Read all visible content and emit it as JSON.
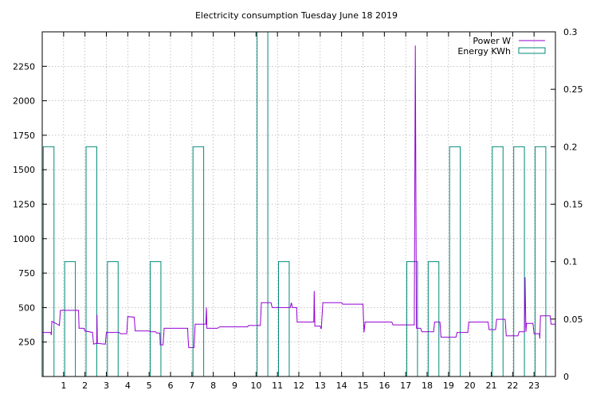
{
  "chart_data": {
    "type": "line",
    "title": "Electricity consumption Tuesday June 18 2019",
    "xlabel": "",
    "ylabel": "",
    "y2label": "",
    "xlim": [
      0,
      24
    ],
    "ylim": [
      0,
      2500
    ],
    "y2lim": [
      0,
      0.3
    ],
    "x_ticks": [
      1,
      2,
      3,
      4,
      5,
      6,
      7,
      8,
      9,
      10,
      11,
      12,
      13,
      14,
      15,
      16,
      17,
      18,
      19,
      20,
      21,
      22,
      23
    ],
    "y_ticks": [
      250,
      500,
      750,
      1000,
      1250,
      1500,
      1750,
      2000,
      2250
    ],
    "y2_ticks": [
      0,
      0.05,
      0.1,
      0.15,
      0.2,
      0.25,
      0.3
    ],
    "y2_tick_labels": [
      "0",
      "0.05",
      "0.1",
      "0.15",
      "0.2",
      "0.25",
      "0.3"
    ],
    "grid": true,
    "legend_position": "top-right",
    "series": [
      {
        "name": "Power W",
        "type": "line",
        "axis": "y",
        "color": "#9400d3",
        "points": [
          [
            0,
            320
          ],
          [
            0.4,
            320
          ],
          [
            0.42,
            300
          ],
          [
            0.45,
            400
          ],
          [
            0.7,
            380
          ],
          [
            0.8,
            370
          ],
          [
            0.85,
            480
          ],
          [
            1.7,
            480
          ],
          [
            1.72,
            350
          ],
          [
            1.95,
            350
          ],
          [
            2.0,
            330
          ],
          [
            2.35,
            320
          ],
          [
            2.4,
            235
          ],
          [
            2.55,
            240
          ],
          [
            2.56,
            450
          ],
          [
            2.58,
            240
          ],
          [
            2.95,
            235
          ],
          [
            3.0,
            320
          ],
          [
            3.6,
            320
          ],
          [
            3.65,
            310
          ],
          [
            3.95,
            310
          ],
          [
            4.0,
            435
          ],
          [
            4.3,
            430
          ],
          [
            4.35,
            330
          ],
          [
            5.0,
            330
          ],
          [
            5.05,
            325
          ],
          [
            5.3,
            325
          ],
          [
            5.35,
            315
          ],
          [
            5.5,
            315
          ],
          [
            5.52,
            230
          ],
          [
            5.65,
            230
          ],
          [
            5.7,
            350
          ],
          [
            6.8,
            350
          ],
          [
            6.82,
            280
          ],
          [
            6.85,
            210
          ],
          [
            7.1,
            210
          ],
          [
            7.15,
            380
          ],
          [
            7.65,
            380
          ],
          [
            7.68,
            500
          ],
          [
            7.7,
            350
          ],
          [
            8.2,
            350
          ],
          [
            8.3,
            360
          ],
          [
            9.6,
            360
          ],
          [
            9.65,
            370
          ],
          [
            10.2,
            370
          ],
          [
            10.25,
            535
          ],
          [
            10.7,
            535
          ],
          [
            10.75,
            500
          ],
          [
            11.6,
            500
          ],
          [
            11.65,
            535
          ],
          [
            11.7,
            500
          ],
          [
            11.9,
            500
          ],
          [
            11.92,
            395
          ],
          [
            12.7,
            395
          ],
          [
            12.72,
            620
          ],
          [
            12.75,
            365
          ],
          [
            13.0,
            365
          ],
          [
            13.05,
            345
          ],
          [
            13.12,
            535
          ],
          [
            14.0,
            535
          ],
          [
            14.05,
            525
          ],
          [
            15.0,
            525
          ],
          [
            15.05,
            320
          ],
          [
            15.1,
            395
          ],
          [
            16.35,
            395
          ],
          [
            16.4,
            375
          ],
          [
            17.4,
            375
          ],
          [
            17.45,
            2400
          ],
          [
            17.5,
            350
          ],
          [
            17.7,
            350
          ],
          [
            17.75,
            325
          ],
          [
            18.3,
            325
          ],
          [
            18.35,
            395
          ],
          [
            18.6,
            395
          ],
          [
            18.65,
            285
          ],
          [
            19.35,
            285
          ],
          [
            19.4,
            320
          ],
          [
            19.9,
            320
          ],
          [
            19.95,
            395
          ],
          [
            20.85,
            395
          ],
          [
            20.9,
            340
          ],
          [
            21.2,
            340
          ],
          [
            21.25,
            415
          ],
          [
            21.65,
            415
          ],
          [
            21.7,
            295
          ],
          [
            22.25,
            295
          ],
          [
            22.3,
            325
          ],
          [
            22.55,
            325
          ],
          [
            22.58,
            720
          ],
          [
            22.62,
            325
          ],
          [
            22.65,
            385
          ],
          [
            22.95,
            385
          ],
          [
            23.0,
            310
          ],
          [
            23.25,
            310
          ],
          [
            23.27,
            275
          ],
          [
            23.3,
            440
          ],
          [
            23.75,
            440
          ],
          [
            23.8,
            380
          ],
          [
            24,
            380
          ]
        ]
      },
      {
        "name": "Energy KWh",
        "type": "bar",
        "axis": "y2",
        "color": "#008b7a",
        "bars": [
          {
            "hour": 0,
            "value": 0.2
          },
          {
            "hour": 1,
            "value": 0.1
          },
          {
            "hour": 2,
            "value": 0.2
          },
          {
            "hour": 3,
            "value": 0.1
          },
          {
            "hour": 5,
            "value": 0.1
          },
          {
            "hour": 7,
            "value": 0.2
          },
          {
            "hour": 10,
            "value": 0.3
          },
          {
            "hour": 11,
            "value": 0.1
          },
          {
            "hour": 17,
            "value": 0.1
          },
          {
            "hour": 18,
            "value": 0.1
          },
          {
            "hour": 19,
            "value": 0.2
          },
          {
            "hour": 21,
            "value": 0.2
          },
          {
            "hour": 22,
            "value": 0.2
          },
          {
            "hour": 23,
            "value": 0.2
          }
        ]
      }
    ]
  }
}
